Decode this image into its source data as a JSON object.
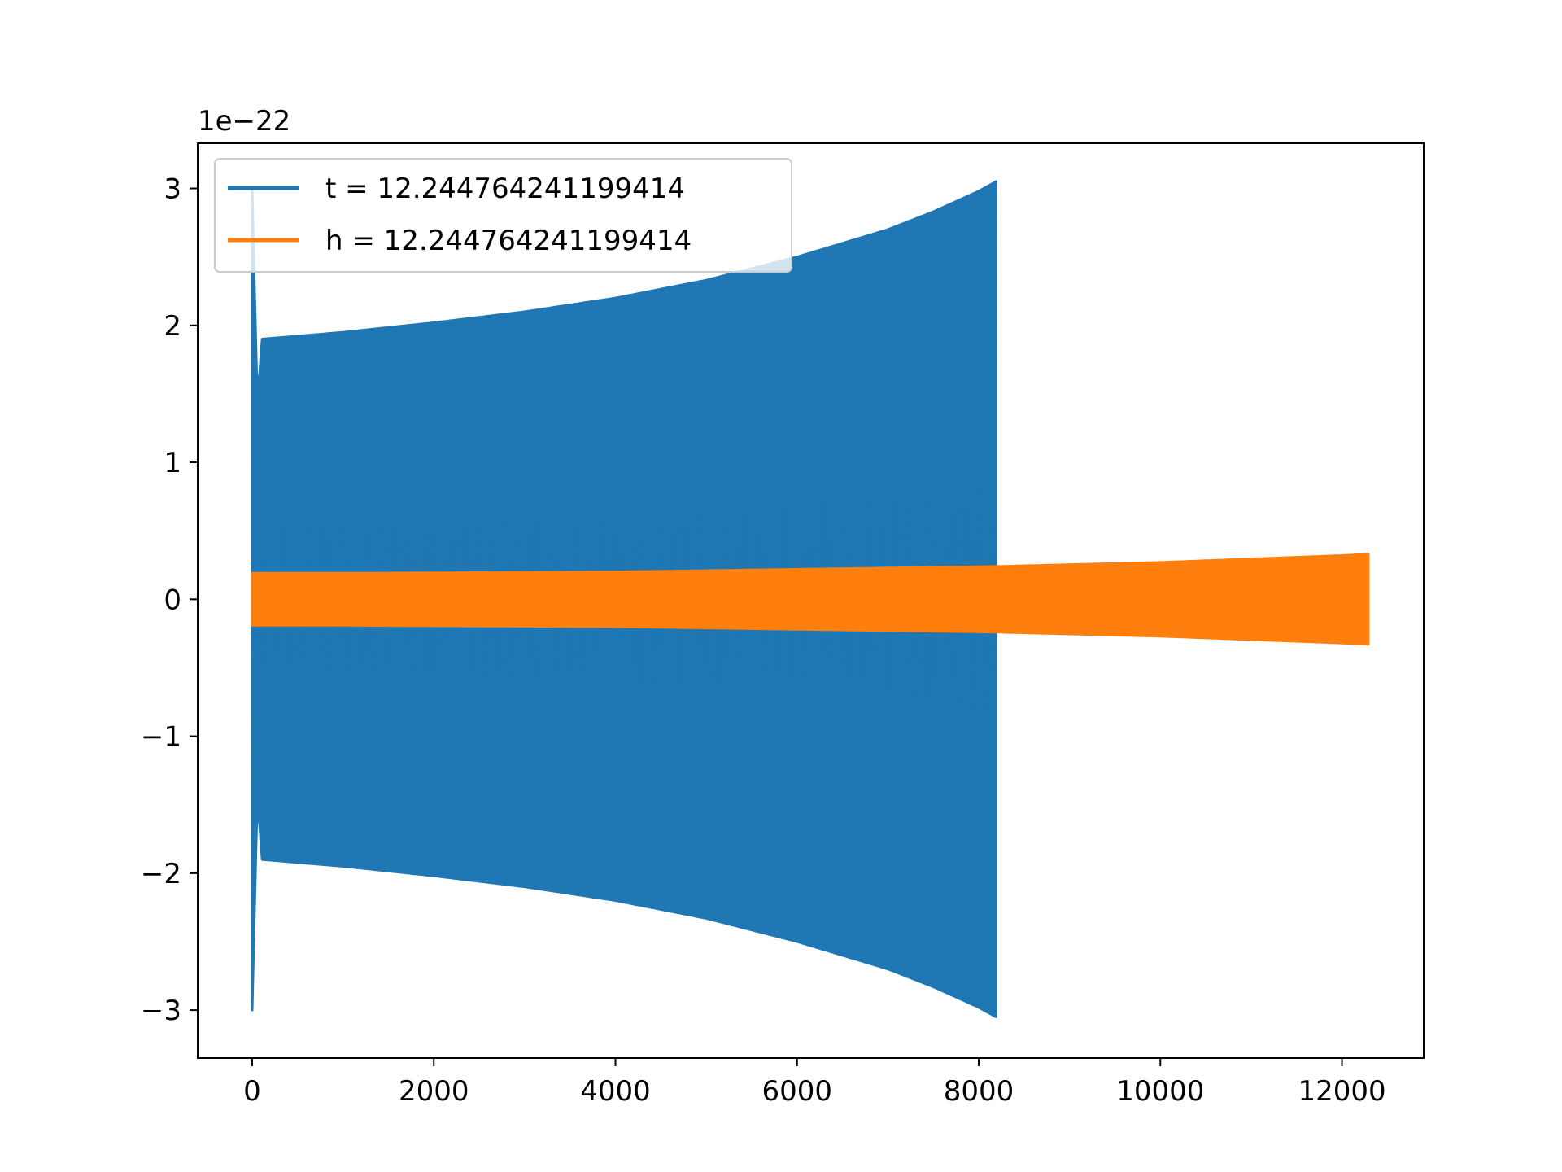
{
  "chart_data": {
    "type": "line",
    "title": "",
    "xlabel": "",
    "ylabel": "",
    "offset_label": "1e−22",
    "xlim": [
      -600,
      12900
    ],
    "ylim": [
      -3.35,
      3.33
    ],
    "x_ticks": [
      0,
      2000,
      4000,
      6000,
      8000,
      10000,
      12000
    ],
    "y_ticks": [
      -3,
      -2,
      -1,
      0,
      1,
      2,
      3
    ],
    "x_tick_labels": [
      "0",
      "2000",
      "4000",
      "6000",
      "8000",
      "10000",
      "12000"
    ],
    "y_tick_labels": [
      "−3",
      "−2",
      "−1",
      "0",
      "1",
      "2",
      "3"
    ],
    "grid": false,
    "legend_position": "upper-left",
    "series": [
      {
        "name": "t = 12.244764241199414",
        "color": "#1f77b4",
        "x_range": [
          0,
          8190
        ],
        "envelope": {
          "x": [
            0,
            60,
            100,
            1000,
            2000,
            3000,
            4000,
            5000,
            6000,
            7000,
            7500,
            8000,
            8190
          ],
          "amplitude": [
            3.0,
            1.35,
            1.9,
            1.95,
            2.02,
            2.1,
            2.2,
            2.33,
            2.5,
            2.7,
            2.83,
            2.98,
            3.05
          ]
        }
      },
      {
        "name": "h = 12.244764241199414",
        "color": "#ff7f0e",
        "x_range": [
          0,
          12290
        ],
        "envelope": {
          "x": [
            0,
            1000,
            4000,
            8190,
            10000,
            12000,
            12290
          ],
          "amplitude": [
            0.19,
            0.19,
            0.2,
            0.24,
            0.27,
            0.32,
            0.33
          ]
        }
      }
    ]
  }
}
